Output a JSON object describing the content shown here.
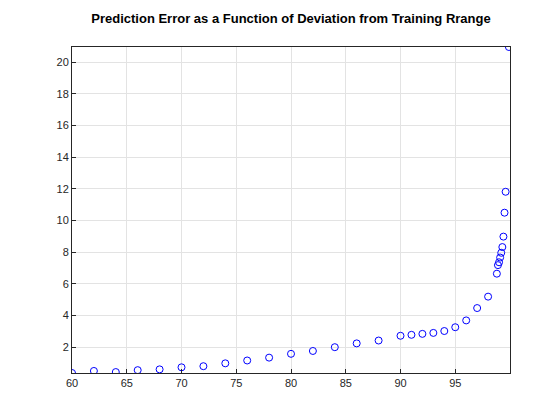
{
  "chart_data": {
    "type": "scatter",
    "title": "Prediction Error as a Function of Deviation from Training Rrange",
    "x": [
      60,
      62,
      64,
      66,
      68,
      70,
      72,
      74,
      76,
      78,
      80,
      82,
      84,
      86,
      88,
      90,
      91,
      92,
      93,
      94,
      95,
      96,
      97,
      98,
      98.8,
      98.9,
      99.0,
      99.1,
      99.2,
      99.3,
      99.4,
      99.5,
      99.6,
      99.9
    ],
    "values": [
      0.37,
      0.5,
      0.43,
      0.55,
      0.6,
      0.73,
      0.8,
      0.98,
      1.16,
      1.34,
      1.58,
      1.76,
      2.0,
      2.24,
      2.42,
      2.72,
      2.78,
      2.84,
      2.9,
      3.02,
      3.26,
      3.69,
      4.47,
      5.19,
      6.64,
      7.18,
      7.36,
      7.66,
      7.96,
      8.32,
      8.98,
      10.49,
      11.81,
      20.95
    ],
    "color": "#0000ff",
    "marker": "circle",
    "xlim": [
      60,
      100
    ],
    "xticks": [
      60,
      65,
      70,
      75,
      80,
      85,
      90,
      95
    ],
    "ylim": [
      0.37,
      20.95
    ],
    "yticks": [
      2,
      4,
      6,
      8,
      10,
      12,
      14,
      16,
      18,
      20
    ],
    "grid": true
  }
}
